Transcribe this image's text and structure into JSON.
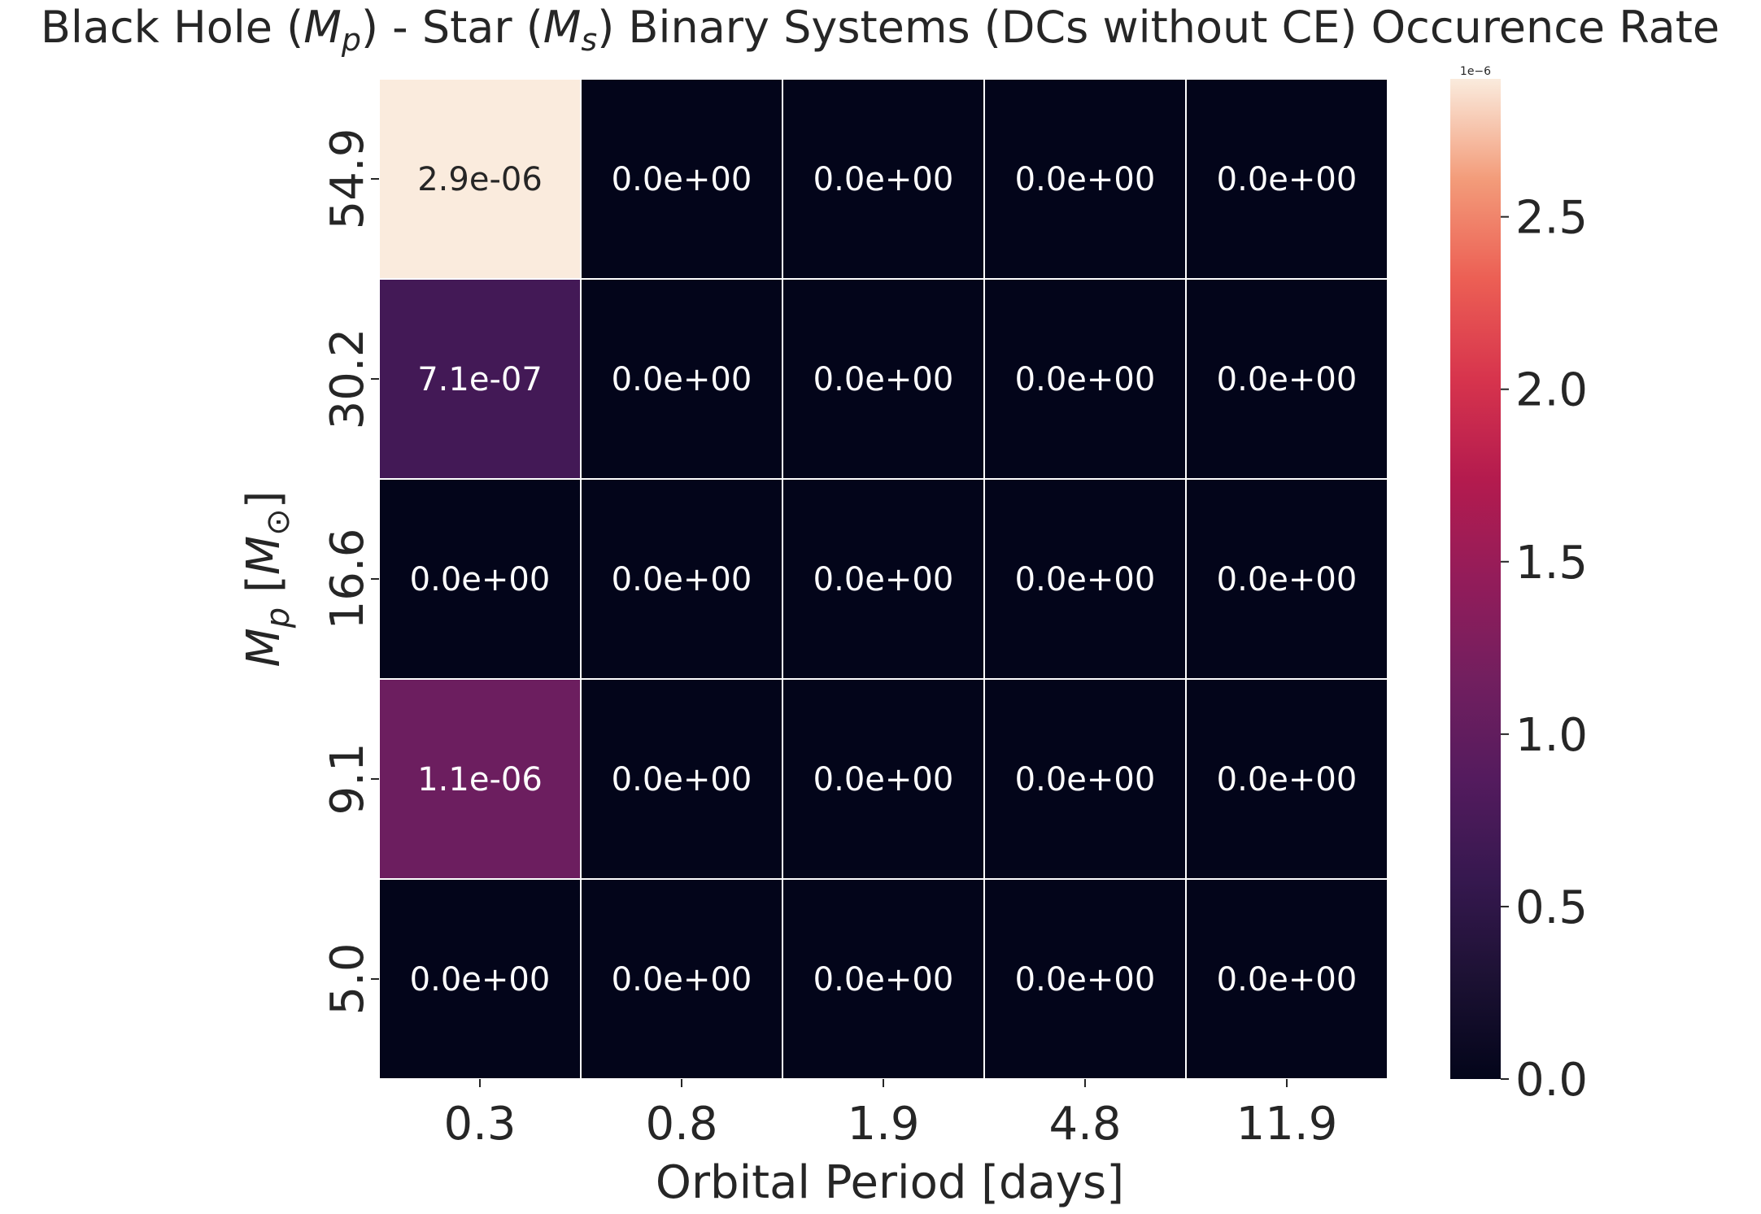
{
  "chart_data": {
    "type": "heatmap",
    "title": "Black Hole (M_p)  - Star (M_s) Binary Systems (DCs without CE) Occurence Rate",
    "title_parts": {
      "p1": "Black Hole (",
      "p1_var": "M",
      "p1_sub": "p",
      "p2": ")  - Star (",
      "p2_var": "M",
      "p2_sub": "s",
      "p3": ") Binary Systems (DCs without CE) Occurence Rate"
    },
    "xlabel": "Orbital Period [days]",
    "ylabel": "M_p  [M_⊙]",
    "ylabel_parts": {
      "var": "M",
      "sub": "p",
      "unit_open": "[",
      "unit_var": "M",
      "unit_sub": "⊙",
      "unit_close": "]"
    },
    "x_categories": [
      "0.3",
      "0.8",
      "1.9",
      "4.8",
      "11.9"
    ],
    "y_categories": [
      "54.9",
      "30.2",
      "16.6",
      "9.1",
      "5.0"
    ],
    "values": [
      [
        2.9e-06,
        0,
        0,
        0,
        0
      ],
      [
        7.1e-07,
        0,
        0,
        0,
        0
      ],
      [
        0,
        0,
        0,
        0,
        0
      ],
      [
        1.1e-06,
        0,
        0,
        0,
        0
      ],
      [
        0,
        0,
        0,
        0,
        0
      ]
    ],
    "cell_labels": [
      [
        "2.9e-06",
        "0.0e+00",
        "0.0e+00",
        "0.0e+00",
        "0.0e+00"
      ],
      [
        "7.1e-07",
        "0.0e+00",
        "0.0e+00",
        "0.0e+00",
        "0.0e+00"
      ],
      [
        "0.0e+00",
        "0.0e+00",
        "0.0e+00",
        "0.0e+00",
        "0.0e+00"
      ],
      [
        "1.1e-06",
        "0.0e+00",
        "0.0e+00",
        "0.0e+00",
        "0.0e+00"
      ],
      [
        "0.0e+00",
        "0.0e+00",
        "0.0e+00",
        "0.0e+00",
        "0.0e+00"
      ]
    ],
    "colorbar": {
      "colormap": "rocket",
      "vmin": 0,
      "vmax": 2.9e-06,
      "offset_label": "1e−6",
      "ticks": [
        0.0,
        0.5,
        1.0,
        1.5,
        2.0,
        2.5
      ],
      "tick_labels": [
        "0.0",
        "0.5",
        "1.0",
        "1.5",
        "2.0",
        "2.5"
      ]
    },
    "grid": false,
    "cell_border_color": "#ffffff"
  }
}
